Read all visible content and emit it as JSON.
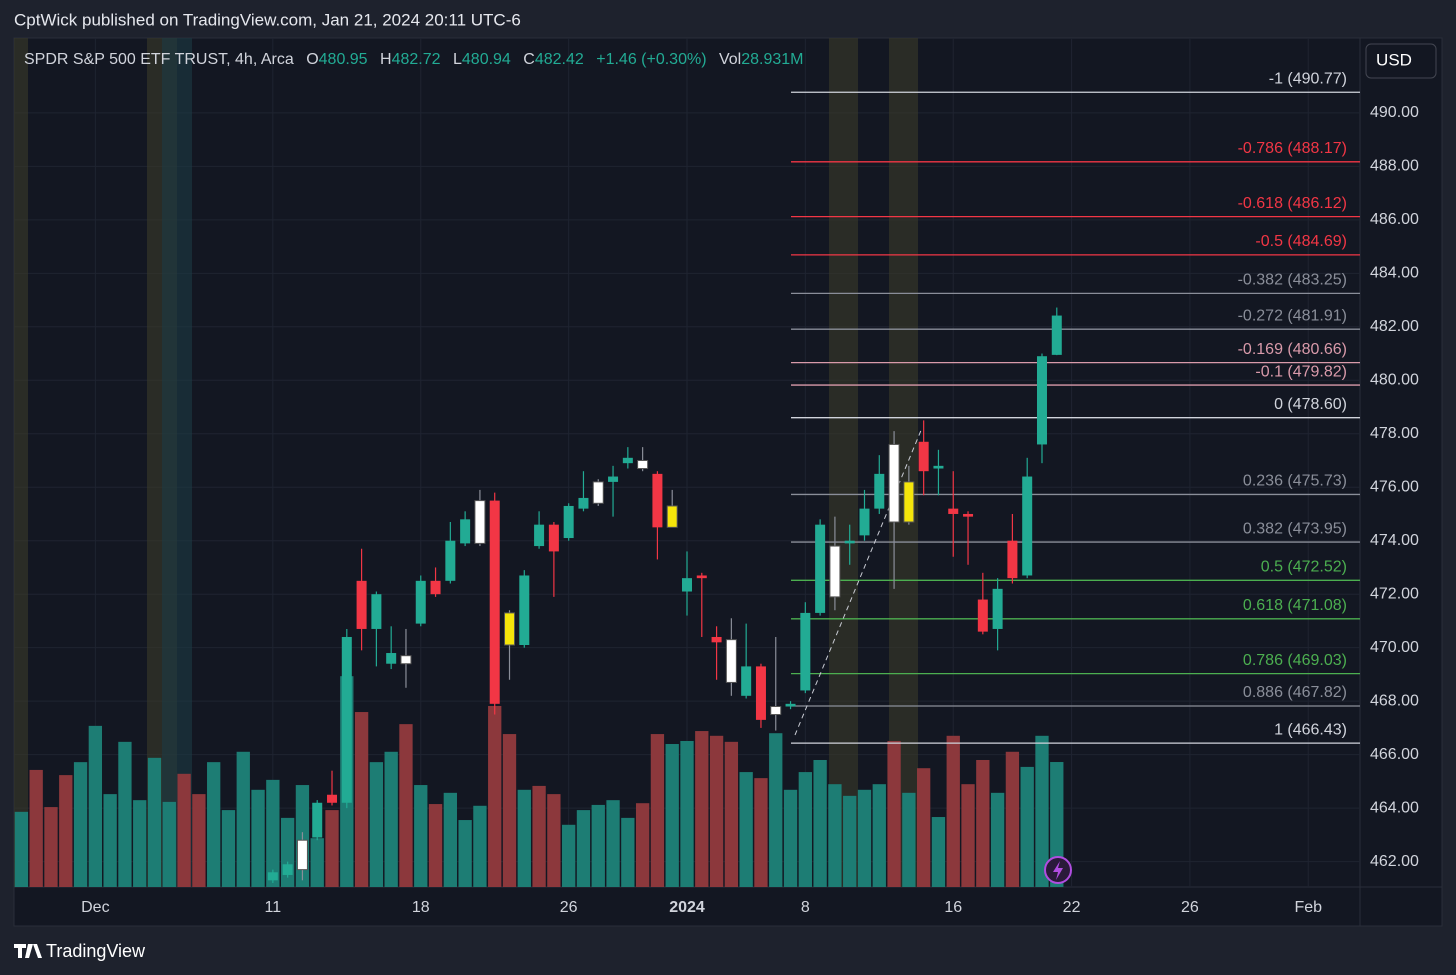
{
  "header": {
    "published": "CptWick published on TradingView.com, Jan 21, 2024 20:11 UTC-6",
    "currency": "USD",
    "brand": "TradingView"
  },
  "chart_data": {
    "type": "candlestick",
    "title": "SPDR S&P 500 ETF TRUST, 4h, Arca",
    "legend": {
      "open_label": "O",
      "high_label": "H",
      "low_label": "L",
      "close_label": "C",
      "change": "+1.46 (+0.30%)",
      "volume_label": "Vol",
      "volume_value": "28.931M"
    },
    "up_color": "#22ab94",
    "down_color": "#f23645",
    "highlights": [
      {
        "index": 19,
        "color": "#ffffff"
      },
      {
        "index": 26,
        "color": "#ffffff"
      },
      {
        "index": 31,
        "color": "#ffffff"
      },
      {
        "index": 33,
        "color": "#f5e50a"
      },
      {
        "index": 39,
        "color": "#ffffff"
      },
      {
        "index": 42,
        "color": "#ffffff"
      },
      {
        "index": 44,
        "color": "#f5e50a"
      },
      {
        "index": 48,
        "color": "#ffffff"
      },
      {
        "index": 51,
        "color": "#ffffff"
      },
      {
        "index": 55,
        "color": "#ffffff"
      },
      {
        "index": 59,
        "color": "#ffffff"
      },
      {
        "index": 60,
        "color": "#f5e50a"
      }
    ],
    "xlim": [
      -0.5,
      90.5
    ],
    "xticks": [
      {
        "value": 5,
        "label": "Dec"
      },
      {
        "value": 17,
        "label": "11"
      },
      {
        "value": 27,
        "label": "18"
      },
      {
        "value": 37,
        "label": "26"
      },
      {
        "value": 45,
        "label": "2024"
      },
      {
        "value": 53,
        "label": "8"
      },
      {
        "value": 63,
        "label": "16"
      },
      {
        "value": 71,
        "label": "22"
      },
      {
        "value": 79,
        "label": "26"
      },
      {
        "value": 87,
        "label": "Feb"
      }
    ],
    "ylim": [
      461.05,
      492.8
    ],
    "yticks": [
      {
        "value": 462,
        "label": "462.00"
      },
      {
        "value": 464,
        "label": "464.00"
      },
      {
        "value": 466,
        "label": "466.00"
      },
      {
        "value": 468,
        "label": "468.00"
      },
      {
        "value": 470,
        "label": "470.00"
      },
      {
        "value": 472,
        "label": "472.00"
      },
      {
        "value": 474,
        "label": "474.00"
      },
      {
        "value": 476,
        "label": "476.00"
      },
      {
        "value": 478,
        "label": "478.00"
      },
      {
        "value": 480,
        "label": "480.00"
      },
      {
        "value": 482,
        "label": "482.00"
      },
      {
        "value": 484,
        "label": "484.00"
      },
      {
        "value": 486,
        "label": "486.00"
      },
      {
        "value": 488,
        "label": "488.00"
      },
      {
        "value": 490,
        "label": "490.00"
      }
    ],
    "grid": true,
    "open": [
      null,
      null,
      null,
      null,
      null,
      null,
      null,
      null,
      null,
      null,
      null,
      null,
      null,
      null,
      null,
      null,
      null,
      461.3,
      461.5,
      461.7,
      462.9,
      464.5,
      464.2,
      472.5,
      470.7,
      469.4,
      469.7,
      470.9,
      472.5,
      472.5,
      473.9,
      473.9,
      475.5,
      470.1,
      470.1,
      473.8,
      474.6,
      474.1,
      475.2,
      475.4,
      476.2,
      476.9,
      477.0,
      476.5,
      474.5,
      472.1,
      472.7,
      470.4,
      470.3,
      468.2,
      469.3,
      467.5,
      467.8,
      468.4,
      471.3,
      471.9,
      473.9,
      474.2,
      475.2,
      474.7,
      474.7,
      477.7,
      476.7,
      475.2,
      475.0,
      471.8,
      470.7,
      474.0,
      472.7,
      477.6,
      480.95
    ],
    "high": [
      null,
      null,
      null,
      null,
      null,
      null,
      null,
      null,
      null,
      null,
      null,
      null,
      null,
      null,
      null,
      null,
      null,
      461.7,
      462.0,
      463.1,
      464.3,
      465.4,
      470.7,
      473.7,
      472.1,
      470.8,
      470.7,
      472.7,
      473.0,
      474.7,
      475.1,
      475.9,
      475.8,
      471.4,
      472.9,
      475.1,
      474.7,
      475.4,
      476.6,
      476.3,
      476.8,
      477.5,
      477.5,
      476.6,
      475.9,
      473.6,
      472.8,
      470.8,
      471.1,
      470.9,
      469.4,
      470.4,
      468.0,
      471.7,
      474.8,
      474.9,
      474.6,
      475.9,
      477.2,
      478.1,
      476.8,
      478.5,
      477.4,
      476.6,
      475.1,
      472.8,
      472.6,
      475.0,
      477.1,
      481.0,
      482.72
    ],
    "low": [
      null,
      null,
      null,
      null,
      null,
      null,
      null,
      null,
      null,
      null,
      null,
      null,
      null,
      null,
      null,
      null,
      null,
      461.2,
      461.4,
      461.3,
      462.8,
      464.1,
      464.0,
      469.9,
      469.3,
      469.2,
      468.5,
      470.8,
      471.9,
      472.4,
      473.8,
      473.8,
      467.5,
      468.8,
      470.0,
      473.7,
      471.9,
      474.0,
      475.1,
      475.3,
      474.9,
      476.7,
      476.6,
      473.3,
      474.5,
      471.2,
      470.4,
      468.8,
      468.2,
      468.1,
      467.0,
      466.9,
      467.7,
      468.3,
      471.2,
      471.4,
      473.1,
      474.0,
      475.0,
      472.2,
      474.6,
      475.7,
      475.7,
      473.4,
      473.1,
      470.5,
      469.9,
      472.4,
      472.6,
      476.9,
      480.94
    ],
    "close": [
      null,
      null,
      null,
      null,
      null,
      null,
      null,
      null,
      null,
      null,
      null,
      null,
      null,
      null,
      null,
      null,
      null,
      461.6,
      461.9,
      462.8,
      464.2,
      464.2,
      470.4,
      470.7,
      472.0,
      469.8,
      469.4,
      472.5,
      472.0,
      474.0,
      474.8,
      475.5,
      467.9,
      471.3,
      472.7,
      474.6,
      473.6,
      475.3,
      475.6,
      476.2,
      476.4,
      477.1,
      476.7,
      474.5,
      475.3,
      472.6,
      472.6,
      470.2,
      468.7,
      469.3,
      467.3,
      467.8,
      467.9,
      471.3,
      474.6,
      473.8,
      474.0,
      475.2,
      476.5,
      477.6,
      476.2,
      476.6,
      476.8,
      475.0,
      474.9,
      470.6,
      472.2,
      472.6,
      476.4,
      480.9,
      482.42
    ],
    "volume": {
      "values": [
        17.4,
        27.1,
        18.5,
        25.9,
        28.9,
        37.3,
        21.5,
        33.6,
        20.1,
        29.9,
        19.7,
        26.2,
        21.5,
        28.9,
        17.8,
        31.3,
        22.5,
        24.8,
        16.0,
        23.6,
        11.3,
        17.8,
        48.8,
        40.5,
        28.9,
        31.3,
        37.7,
        23.6,
        19.2,
        21.8,
        15.5,
        18.8,
        41.9,
        35.4,
        22.5,
        23.4,
        21.5,
        14.4,
        17.8,
        19.0,
        20.1,
        16.0,
        19.4,
        35.4,
        33.1,
        33.8,
        36.1,
        35.0,
        33.6,
        26.6,
        25.2,
        35.6,
        22.5,
        26.6,
        29.4,
        23.8,
        21.1,
        22.5,
        23.8,
        33.8,
        21.8,
        27.5,
        16.2,
        35.0,
        23.8,
        29.4,
        21.8,
        31.3,
        27.8,
        35.0,
        28.931
      ],
      "colors": [
        "#1d7d74",
        "#8c383c",
        "#8c383c",
        "#8c383c",
        "#1d7d74",
        "#1d7d74",
        "#1d7d74",
        "#1d7d74",
        "#1d7d74",
        "#1d7d74",
        "#1d7d74",
        "#8c383c",
        "#8c383c",
        "#1d7d74",
        "#1d7d74",
        "#1d7d74",
        "#1d7d74",
        "#1d7d74",
        "#1d7d74",
        "#1d7d74",
        "#1d7d74",
        "#8c383c",
        "#1d7d74",
        "#8c383c",
        "#1d7d74",
        "#1d7d74",
        "#8c383c",
        "#1d7d74",
        "#8c383c",
        "#1d7d74",
        "#1d7d74",
        "#1d7d74",
        "#8c383c",
        "#8c383c",
        "#1d7d74",
        "#8c383c",
        "#8c383c",
        "#1d7d74",
        "#1d7d74",
        "#1d7d74",
        "#1d7d74",
        "#1d7d74",
        "#8c383c",
        "#8c383c",
        "#1d7d74",
        "#1d7d74",
        "#8c383c",
        "#8c383c",
        "#8c383c",
        "#1d7d74",
        "#8c383c",
        "#1d7d74",
        "#1d7d74",
        "#1d7d74",
        "#1d7d74",
        "#1d7d74",
        "#1d7d74",
        "#1d7d74",
        "#1d7d74",
        "#8c383c",
        "#1d7d74",
        "#8c383c",
        "#1d7d74",
        "#8c383c",
        "#8c383c",
        "#8c383c",
        "#1d7d74",
        "#8c383c",
        "#1d7d74",
        "#1d7d74",
        "#1d7d74"
      ]
    },
    "fib_levels": [
      {
        "label": "-1 (490.77)",
        "value": 490.77,
        "color": "#d1d4dc"
      },
      {
        "label": "-0.786 (488.17)",
        "value": 488.17,
        "color": "#f23645"
      },
      {
        "label": "-0.618 (486.12)",
        "value": 486.12,
        "color": "#f23645"
      },
      {
        "label": "-0.5 (484.69)",
        "value": 484.69,
        "color": "#f23645"
      },
      {
        "label": "-0.382 (483.25)",
        "value": 483.25,
        "color": "#8a8e99"
      },
      {
        "label": "-0.272 (481.91)",
        "value": 481.91,
        "color": "#8a8e99"
      },
      {
        "label": "-0.169 (480.66)",
        "value": 480.66,
        "color": "#d99aaa"
      },
      {
        "label": "-0.1 (479.82)",
        "value": 479.82,
        "color": "#d99aaa"
      },
      {
        "label": "0 (478.60)",
        "value": 478.6,
        "color": "#d1d4dc"
      },
      {
        "label": "0.236 (475.73)",
        "value": 475.73,
        "color": "#8a8e99"
      },
      {
        "label": "0.382 (473.95)",
        "value": 473.95,
        "color": "#8a8e99"
      },
      {
        "label": "0.5 (472.52)",
        "value": 472.52,
        "color": "#4caf50"
      },
      {
        "label": "0.618 (471.08)",
        "value": 471.08,
        "color": "#4caf50"
      },
      {
        "label": "0.786 (469.03)",
        "value": 469.03,
        "color": "#4caf50"
      },
      {
        "label": "0.886 (467.82)",
        "value": 467.82,
        "color": "#8a8e99"
      },
      {
        "label": "1 (466.43)",
        "value": 466.43,
        "color": "#d1d4dc"
      }
    ]
  }
}
